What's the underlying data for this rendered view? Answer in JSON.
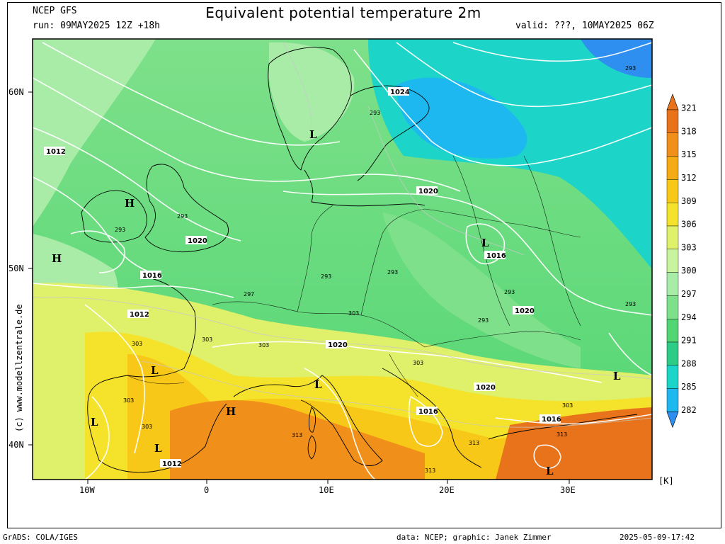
{
  "header": {
    "source": "NCEP GFS",
    "run": "run: 09MAY2025 12Z +18h",
    "title": "Equivalent potential temperature 2m",
    "valid": "valid: ???, 10MAY2025 06Z"
  },
  "watermark": "(c) www.modellzentrale.de",
  "footer": {
    "left": "GrADS: COLA/IGES",
    "center": "data: NCEP; graphic: Janek Zimmer",
    "right": "2025-05-09-17:42"
  },
  "axes": {
    "lat_labels": [
      "60N",
      "50N",
      "40N"
    ],
    "lon_labels": [
      "10W",
      "0",
      "10E",
      "20E",
      "30E"
    ]
  },
  "colorbar": {
    "unit": "[K]",
    "levels": [
      "321",
      "318",
      "315",
      "312",
      "309",
      "306",
      "303",
      "300",
      "297",
      "294",
      "291",
      "288",
      "285",
      "282"
    ],
    "colors": {
      "321": "#e8731a",
      "318": "#f0901a",
      "315": "#f5ab14",
      "312": "#f8c818",
      "309": "#f5e22a",
      "306": "#dff06a",
      "303": "#c8f4a0",
      "300": "#a8eca8",
      "297": "#7ee08a",
      "294": "#52d673",
      "291": "#2ccb86",
      "288": "#1cd5c8",
      "285": "#1eb8f0",
      "282": "#2e8ff0"
    }
  },
  "pressure_labels": [
    "1024",
    "1020",
    "1016",
    "1012"
  ],
  "theta_labels": [
    "293",
    "297",
    "303",
    "313"
  ],
  "systems": {
    "high": "H",
    "low": "L"
  }
}
